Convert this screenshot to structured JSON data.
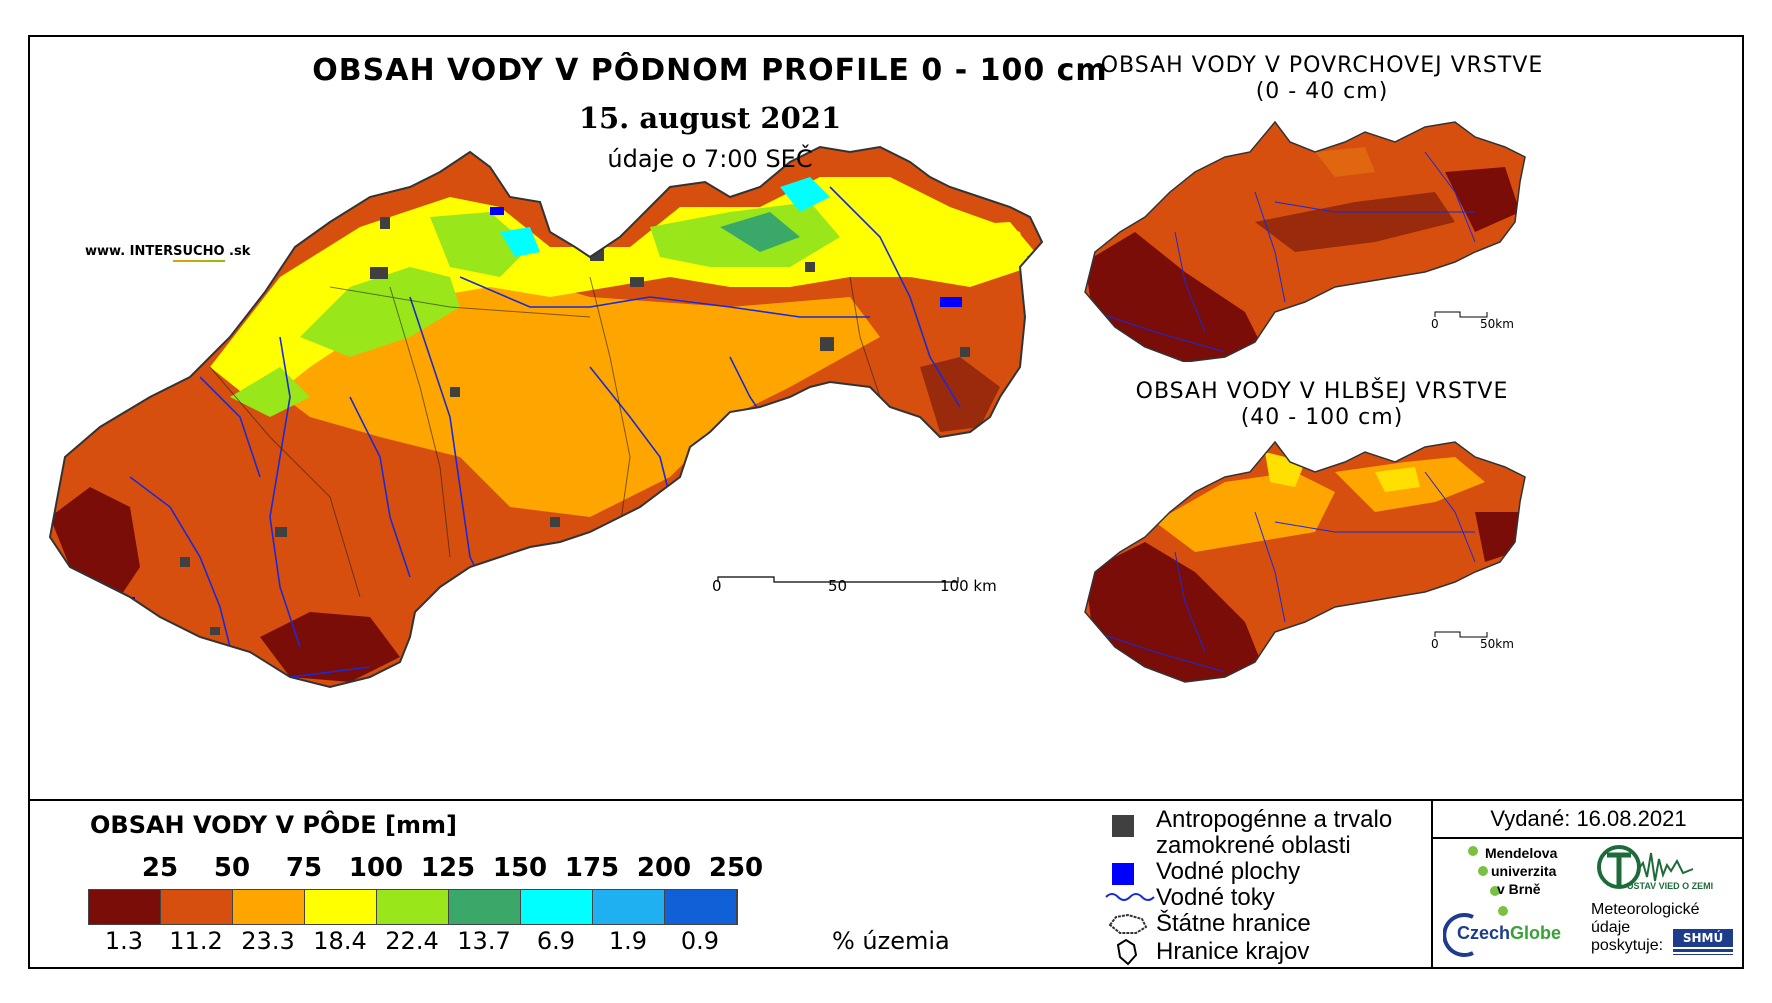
{
  "main_title": "OBSAH VODY V PÔDNOM PROFILE 0 - 100 cm",
  "date": "15. august 2021",
  "time_note": "údaje o 7:00 SEČ",
  "website": {
    "prefix": "www. INTER",
    "brand": "SUCHO",
    "suffix": " .sk"
  },
  "inset_top": {
    "title_line1": "OBSAH VODY V POVRCHOVEJ VRSTVE",
    "title_line2": "(0 - 40 cm)",
    "scale_0": "0",
    "scale_50": "50km"
  },
  "inset_bottom": {
    "title_line1": "OBSAH VODY V HLBŠEJ VRSTVE",
    "title_line2": "(40 - 100 cm)",
    "scale_0": "0",
    "scale_50": "50km"
  },
  "main_scale": {
    "label_0": "0",
    "label_50": "50",
    "label_100": "100 km"
  },
  "legend": {
    "title": "OBSAH VODY V PÔDE [mm]",
    "thresholds": [
      "25",
      "50",
      "75",
      "100",
      "125",
      "150",
      "175",
      "200",
      "250"
    ],
    "classes": [
      {
        "color": "#7b0d09",
        "percent": "1.3"
      },
      {
        "color": "#d64f0f",
        "percent": "11.2"
      },
      {
        "color": "#ffa500",
        "percent": "23.3"
      },
      {
        "color": "#ffff00",
        "percent": "18.4"
      },
      {
        "color": "#99e61a",
        "percent": "22.4"
      },
      {
        "color": "#3aa868",
        "percent": "13.7"
      },
      {
        "color": "#00ffff",
        "percent": "6.9"
      },
      {
        "color": "#1fb0f2",
        "percent": "1.9"
      },
      {
        "color": "#1060d8",
        "percent": "0.9"
      }
    ],
    "percent_unit": "% územia"
  },
  "key": {
    "anthro_line1": "Antropogénne a trvalo",
    "anthro_line2": "zamokrené oblasti",
    "water_areas": "Vodné plochy",
    "water_streams": "Vodné toky",
    "state_borders": "Štátne hranice",
    "region_borders": "Hranice krajov",
    "anthro_color": "#404040",
    "water_color": "#0000ff"
  },
  "publisher": {
    "issued": "Vydané: 16.08.2021",
    "mendelu_line1": "Mendelova",
    "mendelu_line2": "univerzita",
    "mendelu_line3": "v Brně",
    "ustav_line1": "ÚSTAV VIED O ZEMI",
    "czechglobe_a": "Czech",
    "czechglobe_b": "Globe",
    "meteo_line1": "Meteorologické",
    "meteo_line2": "údaje",
    "meteo_line3": "poskytuje:",
    "shmu": "SHMÚ"
  }
}
